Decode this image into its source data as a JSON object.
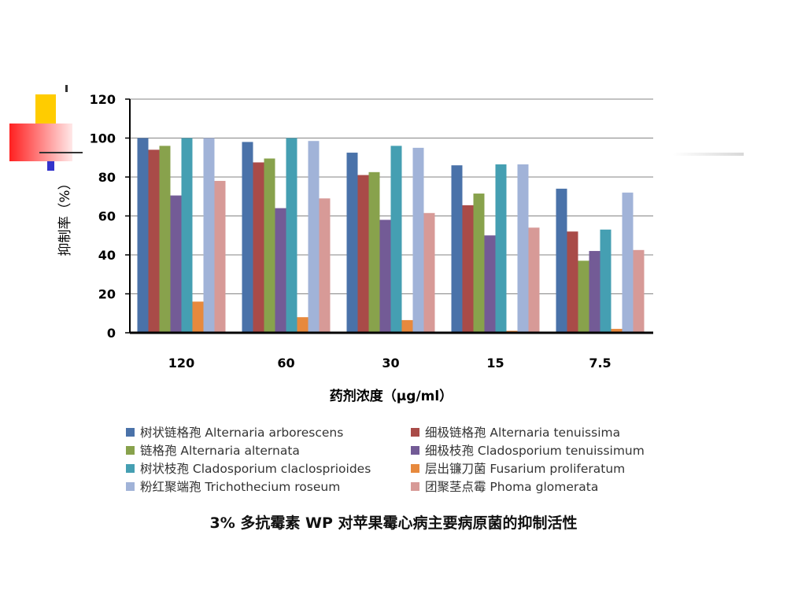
{
  "colors": {
    "decor_yellow": "#FFCC00",
    "decor_red": "#FF2020",
    "decor_blue": "#3333CC",
    "axis": "#000000",
    "grid": "#868686"
  },
  "caption": "3% 多抗霉素 WP 对苹果霉心病主要病原菌的抑制活性",
  "chart_data": {
    "type": "bar",
    "title": "",
    "xlabel": "药剂浓度（μg/ml）",
    "ylabel": "抑制率（%）",
    "ylim": [
      0,
      120
    ],
    "yticks": [
      "0",
      "20",
      "40",
      "60",
      "80",
      "100",
      "120"
    ],
    "grid": true,
    "legend_position": "bottom",
    "categories": [
      "120",
      "60",
      "30",
      "15",
      "7.5"
    ],
    "series": [
      {
        "name": "树状链格孢 Alternaria arborescens",
        "color": "#4A72A9",
        "values": [
          100,
          98,
          92.5,
          86,
          74
        ]
      },
      {
        "name": "细极链格孢 Alternaria tenuissima",
        "color": "#A94B48",
        "values": [
          94,
          87.5,
          81,
          65.5,
          52
        ]
      },
      {
        "name": "链格孢 Alternaria alternata",
        "color": "#88A24C",
        "values": [
          96,
          89.5,
          82.5,
          71.5,
          37
        ]
      },
      {
        "name": "细极枝孢 Cladosporium tenuissimum",
        "color": "#735B96",
        "values": [
          70.5,
          64,
          58,
          50,
          42
        ]
      },
      {
        "name": "树状枝孢 Cladosporium claclosprioides",
        "color": "#459FB2",
        "values": [
          100,
          100,
          96,
          86.5,
          53
        ]
      },
      {
        "name": "层出镰刀菌 Fusarium proliferatum",
        "color": "#E7893D",
        "values": [
          16,
          8,
          6.5,
          1,
          2
        ]
      },
      {
        "name": "粉红聚端孢 Trichothecium roseum",
        "color": "#A1B3D8",
        "values": [
          100,
          98.5,
          95,
          86.5,
          72
        ]
      },
      {
        "name": "团聚茎点霉 Phoma glomerata",
        "color": "#D79A97",
        "values": [
          78,
          69,
          61.5,
          54,
          42.5
        ]
      }
    ]
  }
}
